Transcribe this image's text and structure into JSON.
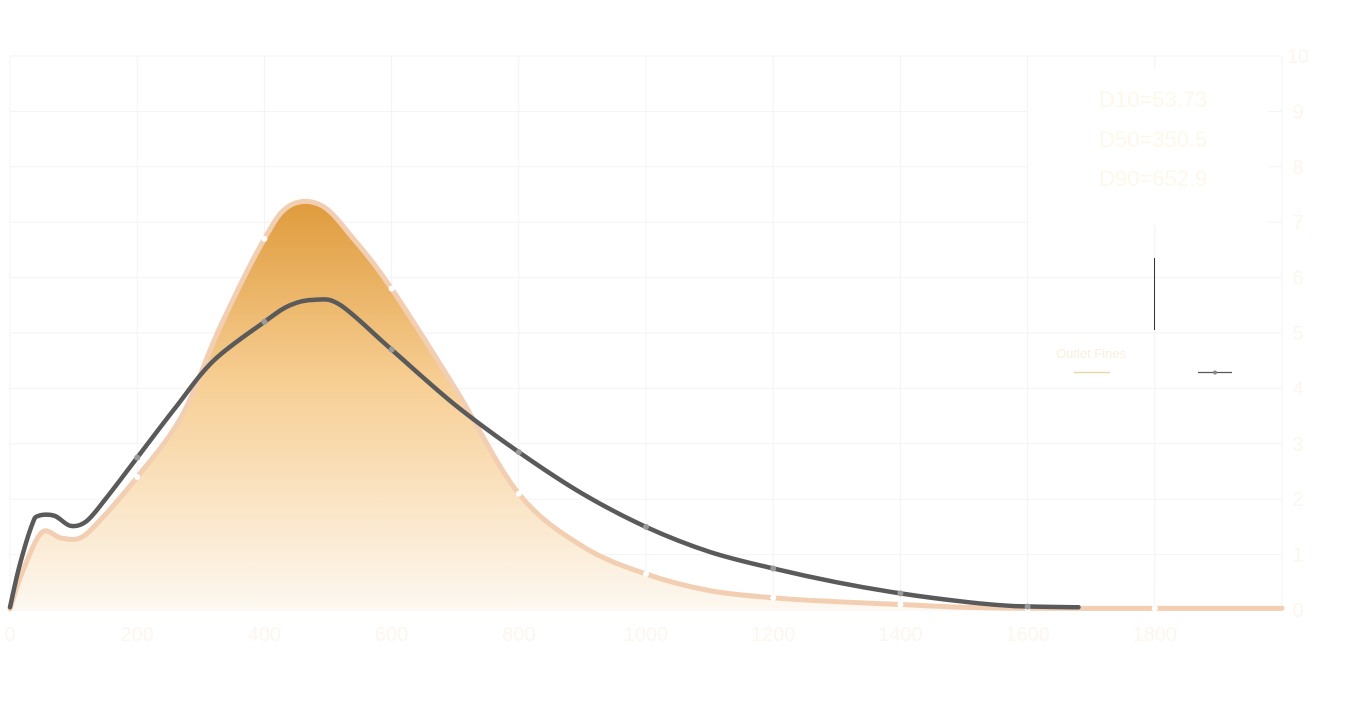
{
  "chart_data": {
    "type": "area",
    "x_ticks": [
      "0",
      "200",
      "400",
      "600",
      "800",
      "1000",
      "1200",
      "1400",
      "1600",
      "1800"
    ],
    "y_ticks": [
      "0",
      "1",
      "2",
      "3",
      "4",
      "5",
      "6",
      "7",
      "8",
      "9",
      "10"
    ],
    "xlim": [
      0,
      2000
    ],
    "ylim": [
      0,
      10
    ],
    "grid": true,
    "annotations": [
      "D10=53.73",
      "D50=350.5",
      "D90=652.9"
    ],
    "legend": {
      "position": "right",
      "entries": [
        "Outlet Fines",
        ""
      ]
    },
    "series": [
      {
        "name": "Outlet Fines",
        "kind": "area",
        "color": "#f2cfb3",
        "fill_top": "#df9b3c",
        "fill_bottom": "#fdf8f1",
        "x": [
          0,
          20,
          50,
          80,
          110,
          140,
          200,
          270,
          330,
          400,
          440,
          490,
          540,
          600,
          700,
          800,
          900,
          1000,
          1100,
          1200,
          1300,
          1400,
          1500,
          1600,
          1800,
          2000
        ],
        "y": [
          0.02,
          0.7,
          1.4,
          1.3,
          1.3,
          1.6,
          2.4,
          3.5,
          5.1,
          6.7,
          7.3,
          7.3,
          6.7,
          5.8,
          4.0,
          2.1,
          1.15,
          0.65,
          0.35,
          0.22,
          0.15,
          0.1,
          0.05,
          0.03,
          0.03,
          0.03
        ],
        "markers": [
          [
            200,
            2.4
          ],
          [
            400,
            6.7
          ],
          [
            600,
            5.8
          ],
          [
            800,
            2.1
          ],
          [
            1000,
            0.65
          ],
          [
            1200,
            0.22
          ],
          [
            1400,
            0.1
          ],
          [
            1600,
            0.03
          ],
          [
            1800,
            0.03
          ]
        ]
      },
      {
        "name": "",
        "kind": "line",
        "color": "#5a5a5a",
        "marker_color": "#9a9a9a",
        "x": [
          0,
          15,
          35,
          45,
          70,
          95,
          120,
          150,
          200,
          260,
          320,
          400,
          440,
          480,
          520,
          600,
          700,
          800,
          900,
          1000,
          1100,
          1200,
          1300,
          1400,
          1500,
          1580,
          1680
        ],
        "y": [
          0.05,
          0.8,
          1.55,
          1.7,
          1.7,
          1.52,
          1.6,
          2.0,
          2.75,
          3.65,
          4.5,
          5.2,
          5.5,
          5.6,
          5.5,
          4.7,
          3.7,
          2.85,
          2.1,
          1.5,
          1.05,
          0.75,
          0.5,
          0.3,
          0.15,
          0.07,
          0.05
        ],
        "markers": [
          [
            200,
            2.75
          ],
          [
            400,
            5.2
          ],
          [
            600,
            4.7
          ],
          [
            800,
            2.85
          ],
          [
            1000,
            1.5
          ],
          [
            1200,
            0.75
          ],
          [
            1400,
            0.3
          ],
          [
            1600,
            0.06
          ]
        ]
      }
    ]
  }
}
